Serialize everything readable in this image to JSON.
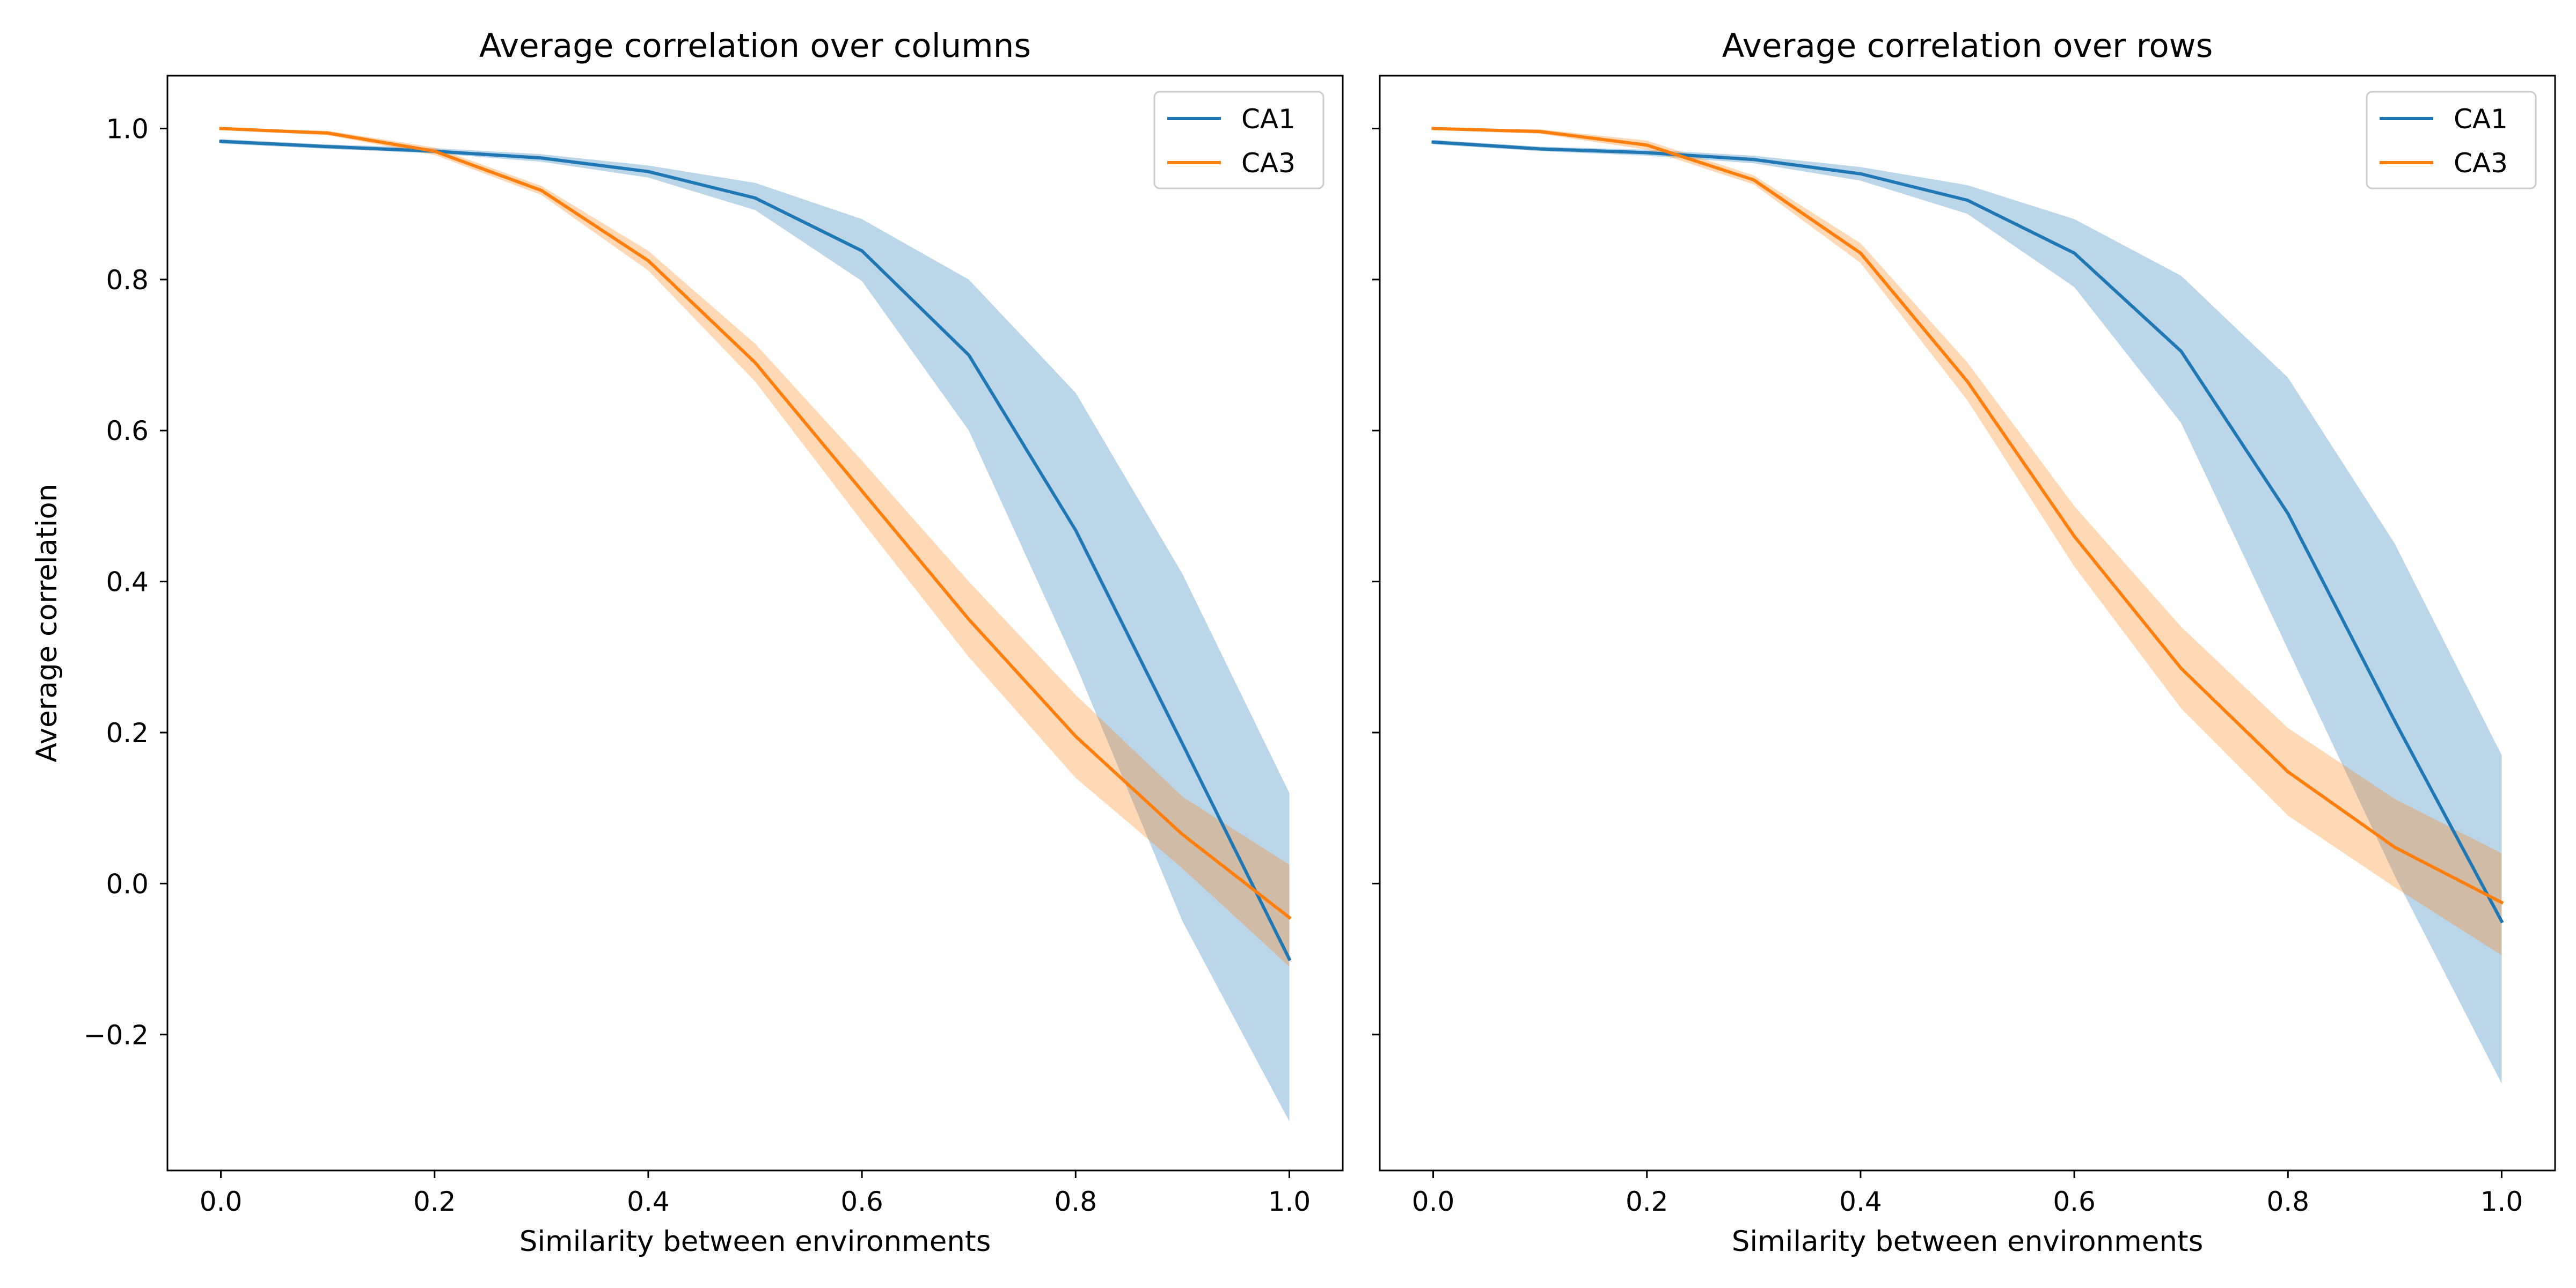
{
  "chart_data": [
    {
      "type": "line",
      "title": "Average correlation over columns",
      "xlabel": "Similarity between environments",
      "ylabel": "Average correlation",
      "x": [
        0.0,
        0.1,
        0.2,
        0.3,
        0.4,
        0.5,
        0.6,
        0.7,
        0.8,
        0.9,
        1.0
      ],
      "xlim": [
        -0.05,
        1.05
      ],
      "ylim": [
        -0.38,
        1.07
      ],
      "xticks": [
        0.0,
        0.2,
        0.4,
        0.6,
        0.8,
        1.0
      ],
      "xticklabels": [
        "0.0",
        "0.2",
        "0.4",
        "0.6",
        "0.8",
        "1.0"
      ],
      "yticks": [
        -0.2,
        0.0,
        0.2,
        0.4,
        0.6,
        0.8,
        1.0
      ],
      "yticklabels": [
        "−0.2",
        "0.0",
        "0.2",
        "0.4",
        "0.6",
        "0.8",
        "1.0"
      ],
      "grid": false,
      "legend": "upper right",
      "series": [
        {
          "name": "CA1",
          "color": "#1f77b4",
          "values": [
            0.983,
            0.976,
            0.97,
            0.961,
            0.943,
            0.908,
            0.838,
            0.7,
            0.468,
            0.185,
            -0.1
          ],
          "lower": [
            0.98,
            0.973,
            0.967,
            0.956,
            0.935,
            0.892,
            0.798,
            0.6,
            0.29,
            -0.05,
            -0.315
          ],
          "upper": [
            0.986,
            0.979,
            0.974,
            0.966,
            0.951,
            0.928,
            0.88,
            0.8,
            0.65,
            0.41,
            0.12
          ]
        },
        {
          "name": "CA3",
          "color": "#ff7f0e",
          "values": [
            1.0,
            0.994,
            0.97,
            0.918,
            0.825,
            0.69,
            0.52,
            0.35,
            0.195,
            0.065,
            -0.045
          ],
          "lower": [
            0.998,
            0.991,
            0.965,
            0.912,
            0.812,
            0.665,
            0.48,
            0.3,
            0.14,
            0.02,
            -0.11
          ],
          "upper": [
            1.0,
            0.997,
            0.975,
            0.924,
            0.838,
            0.715,
            0.56,
            0.4,
            0.25,
            0.115,
            0.025
          ]
        }
      ]
    },
    {
      "type": "line",
      "title": "Average correlation over rows",
      "xlabel": "Similarity between environments",
      "ylabel": "",
      "x": [
        0.0,
        0.1,
        0.2,
        0.3,
        0.4,
        0.5,
        0.6,
        0.7,
        0.8,
        0.9,
        1.0
      ],
      "xlim": [
        -0.05,
        1.05
      ],
      "ylim": [
        -0.38,
        1.07
      ],
      "xticks": [
        0.0,
        0.2,
        0.4,
        0.6,
        0.8,
        1.0
      ],
      "xticklabels": [
        "0.0",
        "0.2",
        "0.4",
        "0.6",
        "0.8",
        "1.0"
      ],
      "yticks": [
        -0.2,
        0.0,
        0.2,
        0.4,
        0.6,
        0.8,
        1.0
      ],
      "yticklabels": [],
      "grid": false,
      "legend": "upper right",
      "series": [
        {
          "name": "CA1",
          "color": "#1f77b4",
          "values": [
            0.982,
            0.973,
            0.968,
            0.959,
            0.94,
            0.905,
            0.835,
            0.705,
            0.49,
            0.215,
            -0.05
          ],
          "lower": [
            0.979,
            0.97,
            0.964,
            0.954,
            0.931,
            0.887,
            0.79,
            0.61,
            0.31,
            0.01,
            -0.265
          ],
          "upper": [
            0.985,
            0.976,
            0.972,
            0.964,
            0.949,
            0.925,
            0.88,
            0.805,
            0.67,
            0.45,
            0.17
          ]
        },
        {
          "name": "CA3",
          "color": "#ff7f0e",
          "values": [
            1.0,
            0.996,
            0.978,
            0.932,
            0.835,
            0.665,
            0.46,
            0.285,
            0.148,
            0.048,
            -0.025
          ],
          "lower": [
            0.998,
            0.993,
            0.972,
            0.926,
            0.822,
            0.64,
            0.42,
            0.232,
            0.09,
            -0.005,
            -0.095
          ],
          "upper": [
            1.0,
            0.999,
            0.984,
            0.938,
            0.848,
            0.69,
            0.5,
            0.34,
            0.206,
            0.112,
            0.04
          ]
        }
      ]
    }
  ]
}
